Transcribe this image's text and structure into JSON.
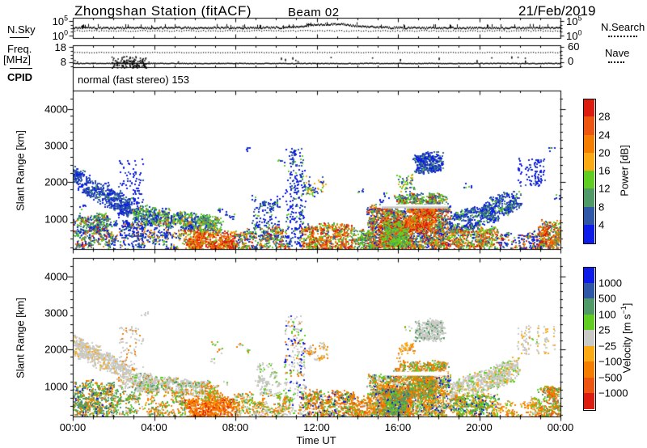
{
  "header": {
    "title": "Zhongshan Station (fitACF)",
    "beam": "Beam 02",
    "date": "21/Feb/2019"
  },
  "left_labels": {
    "nsky": "N.Sky",
    "freq_line1": "Freq.",
    "freq_line2": "[MHz]",
    "cpid": "CPID"
  },
  "right_labels": {
    "nsearch": "N.Search",
    "nave": "Nave"
  },
  "nsky_axis": {
    "top_base": "10",
    "top_exp": "5",
    "bottom_base": "10",
    "bottom_exp": "0"
  },
  "freq_axis": {
    "top": "18",
    "bottom": "8",
    "right_top": "60",
    "right_bottom": "0"
  },
  "cpid_value": "normal (fast stereo) 153",
  "xaxis": {
    "label": "Time UT",
    "ticks": [
      "00:00",
      "04:00",
      "08:00",
      "12:00",
      "16:00",
      "20:00",
      "00:00"
    ]
  },
  "yaxis": {
    "label": "Slant Range [km]",
    "ticks": [
      "4000",
      "3000",
      "2000",
      "1000"
    ],
    "tick_values": [
      4000,
      3000,
      2000,
      1000
    ]
  },
  "power_colorbar": {
    "title_base": "Power [dB]",
    "title_sup": "",
    "title_end": "",
    "labels": [
      "28",
      "24",
      "20",
      "16",
      "12",
      "8",
      "4"
    ],
    "colors": [
      "#dd1c10",
      "#ee5511",
      "#f57d00",
      "#fbaa14",
      "#5fce20",
      "#4f9a66",
      "#3056a8",
      "#0d1ce8"
    ]
  },
  "velocity_colorbar": {
    "title_base": "Velocity [m s",
    "title_sup": "−1",
    "title_end": "]",
    "labels": [
      "1000",
      "500",
      "100",
      "25",
      "−25",
      "−100",
      "−500",
      "−1000"
    ],
    "colors": [
      "#0d1ce8",
      "#3056a8",
      "#4f9a66",
      "#5fce20",
      "#c9cac5",
      "#fbaa14",
      "#f57d00",
      "#ee5511",
      "#dd1c10"
    ]
  },
  "chart_data": {
    "type": "heatmap",
    "station": "Zhongshan Station (fitACF)",
    "beam": "Beam 02",
    "date": "21/Feb/2019",
    "time_range_hours": [
      0,
      24
    ],
    "slant_range_km": [
      150,
      4500
    ],
    "palette": {
      "blue": "#0d1ce8",
      "denim": "#3056a8",
      "seagreen": "#4f9a66",
      "green": "#5fce20",
      "grey": "#c9cac5",
      "amber": "#fbaa14",
      "orange": "#f57d00",
      "vermilion": "#ee5511",
      "red": "#dd1c10"
    },
    "nsky_trace": {
      "solid_frac": 0.45,
      "noise_frac": 0.09,
      "bump": {
        "center": 12.7,
        "width": 1.6,
        "amp_frac": 0.18
      },
      "dotted_frac": 0.6,
      "dotted_noise": 0.045
    },
    "freq_trace": {
      "solid_frac": 0.78,
      "burst": {
        "t0": 1.9,
        "t1": 3.6,
        "frac_lo": 0.45,
        "frac_hi": 0.98,
        "n": 130
      },
      "nave_dotted_frac": 0.3,
      "sparse_dots": 14,
      "dropouts": 8
    },
    "gap_stripe": {
      "t": [
        15.2,
        18.45
      ],
      "r": [
        1285,
        1395
      ],
      "grey_line_r": 1335,
      "grey": "#c4c5c0"
    },
    "power_clusters": [
      {
        "t": [
          0,
          2.8
        ],
        "r": [
          1900,
          2420
        ],
        "drift": -850,
        "n": 650,
        "colors": {
          "denim": 5,
          "blue": 3,
          "seagreen": 1
        }
      },
      {
        "t": [
          0,
          1.9
        ],
        "r": [
          230,
          1150
        ],
        "n": 620,
        "colors": {
          "seagreen": 3,
          "green": 2,
          "denim": 2,
          "blue": 2,
          "orange": 1,
          "red": 1
        }
      },
      {
        "t": [
          1.9,
          3.3
        ],
        "r": [
          230,
          950
        ],
        "n": 200,
        "colors": {
          "denim": 3,
          "blue": 3,
          "green": 1,
          "orange": 1
        }
      },
      {
        "t": [
          2.2,
          3.5
        ],
        "r": [
          950,
          2650
        ],
        "n": 130,
        "streaks": true,
        "colors": {
          "blue": 4,
          "denim": 2
        }
      },
      {
        "t": [
          3.0,
          6.7
        ],
        "r": [
          930,
          1340
        ],
        "drift": -260,
        "n": 800,
        "colors": {
          "green": 3,
          "seagreen": 3,
          "denim": 2,
          "blue": 2,
          "orange": 1
        }
      },
      {
        "t": [
          3.2,
          5.8
        ],
        "r": [
          220,
          900
        ],
        "n": 260,
        "colors": {
          "blue": 2,
          "denim": 2,
          "green": 1,
          "orange": 1,
          "amber": 1
        }
      },
      {
        "t": [
          5.6,
          8.0
        ],
        "r": [
          180,
          680
        ],
        "n": 680,
        "colors": {
          "red": 3,
          "vermilion": 3,
          "orange": 2,
          "amber": 1,
          "green": 1
        }
      },
      {
        "t": [
          6.3,
          7.2
        ],
        "r": [
          680,
          1060
        ],
        "n": 140,
        "colors": {
          "green": 2,
          "seagreen": 2,
          "orange": 1,
          "denim": 1
        }
      },
      {
        "t": [
          8.0,
          10.6
        ],
        "r": [
          180,
          800
        ],
        "n": 420,
        "colors": {
          "green": 2,
          "seagreen": 2,
          "orange": 2,
          "denim": 2,
          "blue": 1,
          "red": 1
        }
      },
      {
        "t": [
          8.8,
          10.2
        ],
        "r": [
          800,
          1600
        ],
        "n": 130,
        "colors": {
          "blue": 3,
          "denim": 2,
          "green": 1
        }
      },
      {
        "t": [
          10.4,
          11.4
        ],
        "r": [
          250,
          2950
        ],
        "n": 250,
        "streaks": true,
        "colors": {
          "blue": 4,
          "denim": 2,
          "green": 1
        }
      },
      {
        "t": [
          11.3,
          13.7
        ],
        "r": [
          180,
          850
        ],
        "n": 620,
        "colors": {
          "orange": 3,
          "red": 2,
          "vermilion": 2,
          "green": 2,
          "seagreen": 1,
          "denim": 1
        }
      },
      {
        "t": [
          11.4,
          12.4
        ],
        "r": [
          1700,
          2150
        ],
        "n": 70,
        "colors": {
          "amber": 1,
          "green": 1,
          "blue": 1,
          "denim": 1
        }
      },
      {
        "t": [
          13.7,
          14.8
        ],
        "r": [
          180,
          700
        ],
        "n": 260,
        "colors": {
          "green": 2,
          "seagreen": 2,
          "orange": 2,
          "denim": 1,
          "red": 1
        }
      },
      {
        "t": [
          14.6,
          18.45
        ],
        "r": [
          200,
          1350
        ],
        "n": 2400,
        "colors": {
          "green": 3,
          "seagreen": 3,
          "orange": 3,
          "red": 2,
          "vermilion": 2,
          "denim": 2,
          "blue": 2,
          "amber": 1
        }
      },
      {
        "t": [
          15.2,
          16.6
        ],
        "r": [
          250,
          1000
        ],
        "n": 650,
        "colors": {
          "red": 3,
          "vermilion": 3,
          "orange": 2,
          "amber": 1
        }
      },
      {
        "t": [
          16.6,
          17.8
        ],
        "r": [
          700,
          1300
        ],
        "n": 380,
        "colors": {
          "red": 2,
          "vermilion": 2,
          "orange": 2,
          "green": 1
        }
      },
      {
        "t": [
          15.3,
          16.4
        ],
        "r": [
          250,
          900
        ],
        "n": 320,
        "colors": {
          "green": 3,
          "seagreen": 2
        }
      },
      {
        "t": [
          15.9,
          18.3
        ],
        "r": [
          1390,
          1650
        ],
        "n": 380,
        "colors": {
          "green": 3,
          "seagreen": 2,
          "denim": 2,
          "orange": 1,
          "red": 1
        }
      },
      {
        "t": [
          16.9,
          18.15
        ],
        "r": [
          2300,
          2800
        ],
        "n": 400,
        "colors": {
          "blue": 3,
          "denim": 3,
          "seagreen": 1
        }
      },
      {
        "t": [
          16.0,
          16.7
        ],
        "r": [
          1800,
          2250
        ],
        "n": 55,
        "colors": {
          "green": 2,
          "amber": 1,
          "denim": 1
        }
      },
      {
        "t": [
          18.6,
          21.9
        ],
        "r": [
          550,
          1100
        ],
        "drift": 700,
        "n": 850,
        "colors": {
          "blue": 3,
          "denim": 3,
          "seagreen": 1,
          "green": 1
        }
      },
      {
        "t": [
          18.6,
          20.8
        ],
        "r": [
          200,
          750
        ],
        "n": 520,
        "colors": {
          "green": 2,
          "seagreen": 2,
          "orange": 2,
          "red": 1,
          "vermilion": 1,
          "denim": 1,
          "amber": 1
        }
      },
      {
        "t": [
          20.8,
          23.1
        ],
        "r": [
          180,
          620
        ],
        "n": 240,
        "colors": {
          "denim": 2,
          "blue": 2,
          "green": 1,
          "orange": 1,
          "red": 1
        }
      },
      {
        "t": [
          21.9,
          23.7
        ],
        "r": [
          1900,
          2680
        ],
        "n": 100,
        "streaks": true,
        "colors": {
          "blue": 3,
          "denim": 1
        }
      },
      {
        "t": [
          23.0,
          24.0
        ],
        "r": [
          180,
          950
        ],
        "n": 400,
        "colors": {
          "orange": 3,
          "red": 2,
          "vermilion": 2,
          "green": 2,
          "seagreen": 1,
          "denim": 1
        }
      },
      {
        "t": [
          0,
          24
        ],
        "r": [
          200,
          3000
        ],
        "n": 110,
        "colors": {
          "blue": 3,
          "denim": 1,
          "green": 1
        }
      }
    ],
    "velocity_clusters": [
      {
        "t": [
          0,
          2.8
        ],
        "r": [
          1900,
          2420
        ],
        "drift": -850,
        "n": 650,
        "colors": {
          "grey": 6,
          "amber": 1
        }
      },
      {
        "t": [
          0,
          1.9
        ],
        "r": [
          230,
          1150
        ],
        "n": 620,
        "colors": {
          "seagreen": 4,
          "orange": 2,
          "green": 1,
          "amber": 1,
          "blue": 1
        }
      },
      {
        "t": [
          1.9,
          3.3
        ],
        "r": [
          230,
          950
        ],
        "n": 200,
        "colors": {
          "seagreen": 3,
          "green": 1,
          "orange": 1,
          "grey": 1
        }
      },
      {
        "t": [
          2.2,
          3.5
        ],
        "r": [
          950,
          2650
        ],
        "n": 130,
        "streaks": true,
        "colors": {
          "grey": 4,
          "orange": 1
        }
      },
      {
        "t": [
          3.0,
          6.7
        ],
        "r": [
          930,
          1340
        ],
        "drift": -260,
        "n": 800,
        "colors": {
          "grey": 5,
          "green": 1,
          "orange": 1,
          "seagreen": 1
        }
      },
      {
        "t": [
          3.2,
          5.8
        ],
        "r": [
          220,
          900
        ],
        "n": 260,
        "colors": {
          "orange": 2,
          "amber": 1,
          "green": 1,
          "seagreen": 1,
          "grey": 1
        }
      },
      {
        "t": [
          5.6,
          8.0
        ],
        "r": [
          180,
          680
        ],
        "n": 680,
        "colors": {
          "orange": 5,
          "vermilion": 2,
          "amber": 1,
          "red": 1
        }
      },
      {
        "t": [
          6.3,
          7.2
        ],
        "r": [
          680,
          1060
        ],
        "n": 140,
        "colors": {
          "orange": 2,
          "grey": 1,
          "green": 1
        }
      },
      {
        "t": [
          8.0,
          10.6
        ],
        "r": [
          180,
          800
        ],
        "n": 420,
        "colors": {
          "orange": 2,
          "amber": 1,
          "green": 1,
          "seagreen": 1,
          "grey": 2
        }
      },
      {
        "t": [
          8.8,
          10.2
        ],
        "r": [
          800,
          1600
        ],
        "n": 130,
        "colors": {
          "grey": 4,
          "green": 1
        }
      },
      {
        "t": [
          10.4,
          11.4
        ],
        "r": [
          250,
          2950
        ],
        "n": 250,
        "streaks": true,
        "colors": {
          "grey": 3,
          "orange": 1,
          "green": 1,
          "blue": 1
        }
      },
      {
        "t": [
          11.3,
          13.7
        ],
        "r": [
          180,
          850
        ],
        "n": 620,
        "colors": {
          "orange": 4,
          "vermilion": 1,
          "green": 2,
          "seagreen": 1,
          "blue": 1,
          "grey": 1
        }
      },
      {
        "t": [
          11.4,
          12.4
        ],
        "r": [
          1700,
          2150
        ],
        "n": 70,
        "colors": {
          "grey": 2,
          "amber": 1,
          "orange": 1
        }
      },
      {
        "t": [
          13.7,
          14.8
        ],
        "r": [
          180,
          700
        ],
        "n": 260,
        "colors": {
          "orange": 3,
          "vermilion": 1,
          "green": 1,
          "grey": 1
        }
      },
      {
        "t": [
          14.6,
          18.45
        ],
        "r": [
          200,
          1350
        ],
        "n": 2400,
        "colors": {
          "orange": 4,
          "seagreen": 2,
          "green": 2,
          "grey": 2,
          "amber": 1,
          "blue": 1
        }
      },
      {
        "t": [
          15.2,
          16.6
        ],
        "r": [
          250,
          1000
        ],
        "n": 650,
        "colors": {
          "orange": 5,
          "vermilion": 2,
          "amber": 1
        }
      },
      {
        "t": [
          16.6,
          17.8
        ],
        "r": [
          700,
          1300
        ],
        "n": 380,
        "colors": {
          "orange": 3,
          "seagreen": 2,
          "green": 1
        }
      },
      {
        "t": [
          15.3,
          16.4
        ],
        "r": [
          250,
          900
        ],
        "n": 320,
        "colors": {
          "seagreen": 4,
          "green": 2,
          "blue": 1
        }
      },
      {
        "t": [
          15.9,
          18.3
        ],
        "r": [
          1390,
          1650
        ],
        "n": 380,
        "colors": {
          "orange": 3,
          "green": 1,
          "seagreen": 1,
          "grey": 1
        }
      },
      {
        "t": [
          16.9,
          18.15
        ],
        "r": [
          2300,
          2800
        ],
        "n": 400,
        "colors": {
          "grey": 5,
          "seagreen": 1
        }
      },
      {
        "t": [
          16.0,
          16.7
        ],
        "r": [
          1800,
          2250
        ],
        "n": 55,
        "colors": {
          "amber": 2,
          "orange": 1,
          "grey": 1
        }
      },
      {
        "t": [
          18.6,
          21.9
        ],
        "r": [
          550,
          1100
        ],
        "drift": 700,
        "n": 850,
        "colors": {
          "grey": 5,
          "amber": 1,
          "green": 1
        }
      },
      {
        "t": [
          18.6,
          20.8
        ],
        "r": [
          200,
          750
        ],
        "n": 520,
        "colors": {
          "green": 3,
          "seagreen": 3,
          "blue": 1,
          "orange": 2,
          "amber": 1
        }
      },
      {
        "t": [
          20.8,
          23.1
        ],
        "r": [
          180,
          620
        ],
        "n": 240,
        "colors": {
          "grey": 1,
          "orange": 2,
          "amber": 1,
          "green": 1
        }
      },
      {
        "t": [
          21.9,
          23.7
        ],
        "r": [
          1900,
          2680
        ],
        "n": 100,
        "streaks": true,
        "colors": {
          "grey": 3,
          "amber": 1
        }
      },
      {
        "t": [
          23.0,
          24.0
        ],
        "r": [
          180,
          950
        ],
        "n": 400,
        "colors": {
          "orange": 3,
          "vermilion": 1,
          "green": 2,
          "seagreen": 1,
          "grey": 1
        }
      },
      {
        "t": [
          0,
          24
        ],
        "r": [
          200,
          3000
        ],
        "n": 110,
        "colors": {
          "grey": 2,
          "orange": 1,
          "green": 1
        }
      }
    ]
  }
}
